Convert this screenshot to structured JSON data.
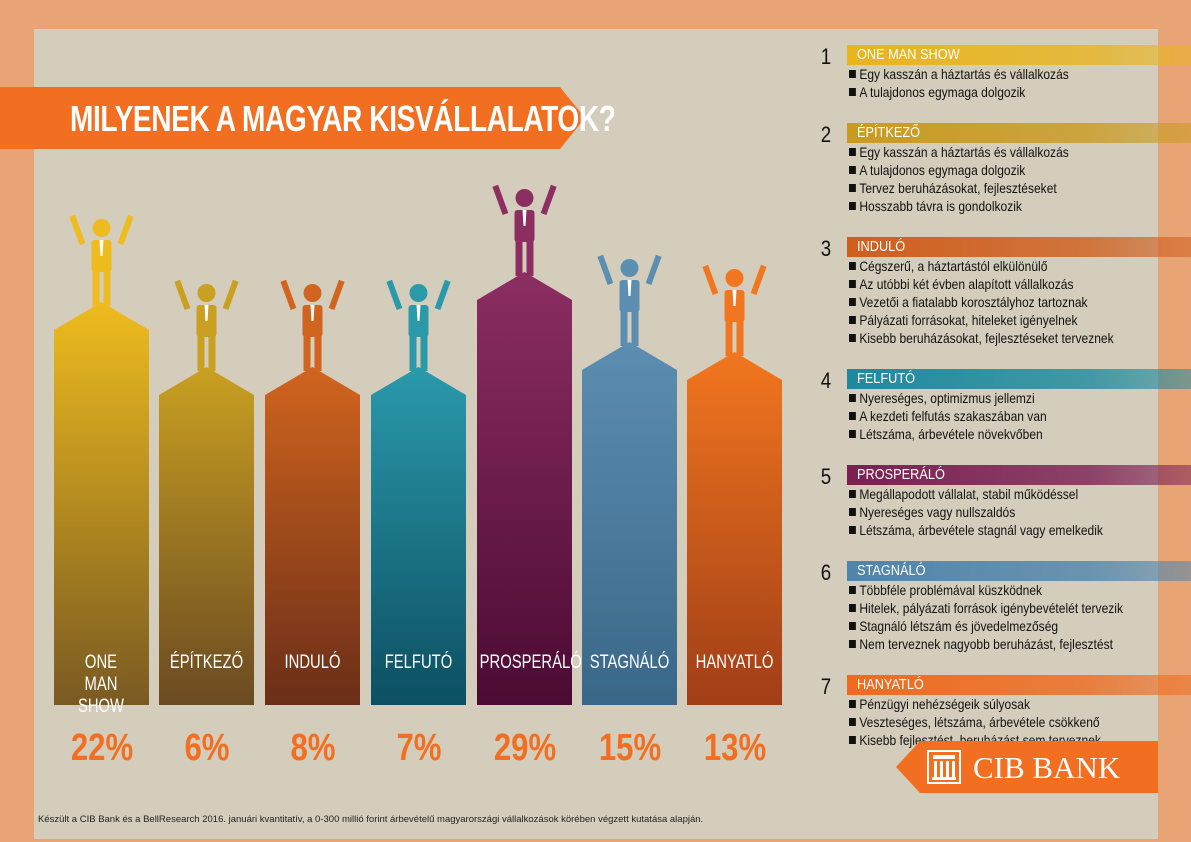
{
  "title": "MILYENEK A MAGYAR KISVÁLLALATOK?",
  "bars": [
    {
      "label": "ONE MAN SHOW",
      "percent": "22%",
      "icon": "figure-with-coins-icon",
      "color_top": "#EEBC1E",
      "color_bottom": "#7A5A22"
    },
    {
      "label": "ÉPÍTKEZŐ",
      "percent": "6%",
      "icon": "figure-stacking-bricks-icon",
      "color_top": "#C9A021",
      "color_bottom": "#6B4A22"
    },
    {
      "label": "INDULÓ",
      "percent": "8%",
      "icon": "figure-crouching-start-icon",
      "color_top": "#D1641E",
      "color_bottom": "#6A2E18"
    },
    {
      "label": "FELFUTÓ",
      "percent": "7%",
      "icon": "figure-climbing-stairs-icon",
      "color_top": "#2A9AAB",
      "color_bottom": "#0D4F63"
    },
    {
      "label": "PROSPERÁLÓ",
      "percent": "29%",
      "icon": "figure-holding-trophy-icon",
      "color_top": "#8C2E62",
      "color_bottom": "#4B0A33"
    },
    {
      "label": "STAGNÁLÓ",
      "percent": "15%",
      "icon": "figure-standing-still-icon",
      "color_top": "#5C8EB2",
      "color_bottom": "#3A6788"
    },
    {
      "label": "HANYATLÓ",
      "percent": "13%",
      "icon": "figure-with-lifebuoy-icon",
      "color_top": "#F2761F",
      "color_bottom": "#A03E17"
    }
  ],
  "legend": [
    {
      "num": "1",
      "heading": "ONE MAN SHOW",
      "color": "#E8B41E",
      "items": [
        "Egy kasszán a háztartás és vállalkozás",
        "A tulajdonos egymaga dolgozik"
      ]
    },
    {
      "num": "2",
      "heading": "ÉPÍTKEZŐ",
      "color": "#C99A1F",
      "items": [
        "Egy kasszán a háztartás és vállalkozás",
        "A tulajdonos egymaga dolgozik",
        "Tervez beruházásokat, fejlesztéseket",
        "Hosszabb távra is gondolkozik"
      ]
    },
    {
      "num": "3",
      "heading": "INDULÓ",
      "color": "#CF5E1D",
      "items": [
        "Cégszerű, a háztartástól elkülönülő",
        "Az utóbbi két évben alapított vállalkozás",
        "Vezetői a fiatalabb korosztályhoz tartoznak",
        "Pályázati forrásokat, hiteleket igényelnek",
        "Kisebb beruházásokat, fejlesztéseket terveznek"
      ]
    },
    {
      "num": "4",
      "heading": "FELFUTÓ",
      "color": "#1D8A9E",
      "items": [
        "Nyereséges, optimizmus jellemzi",
        "A kezdeti felfutás szakaszában van",
        "Létszáma, árbevétele növekvőben"
      ]
    },
    {
      "num": "5",
      "heading": "PROSPERÁLÓ",
      "color": "#7A1F52",
      "items": [
        "Megállapodott vállalat, stabil működéssel",
        "Nyereséges vagy nullszaldós",
        "Létszáma, árbevétele stagnál vagy emelkedik"
      ]
    },
    {
      "num": "6",
      "heading": "STAGNÁLÓ",
      "color": "#4F84AB",
      "items": [
        "Többféle problémával küszködnek",
        "Hitelek, pályázati források igénybevételét tervezik",
        "Stagnáló létszám és jövedelmezőség",
        "Nem terveznek nagyobb beruházást, fejlesztést"
      ]
    },
    {
      "num": "7",
      "heading": "HANYATLÓ",
      "color": "#EE6A1E",
      "items": [
        "Pénzügyi nehézségeik súlyosak",
        "Veszteséges, létszáma, árbevétele csökkenő",
        "Kisebb fejlesztést, beruházást sem terveznek"
      ]
    }
  ],
  "footnote": "Készült a CIB Bank és a BellResearch 2016. januári kvantitatív, a 0-300 millió forint árbevételű magyarországi vállalkozások körében végzett kutatása alapján.",
  "logo": {
    "text": "CIB BANK",
    "icon": "cib-bank-logo-icon"
  }
}
